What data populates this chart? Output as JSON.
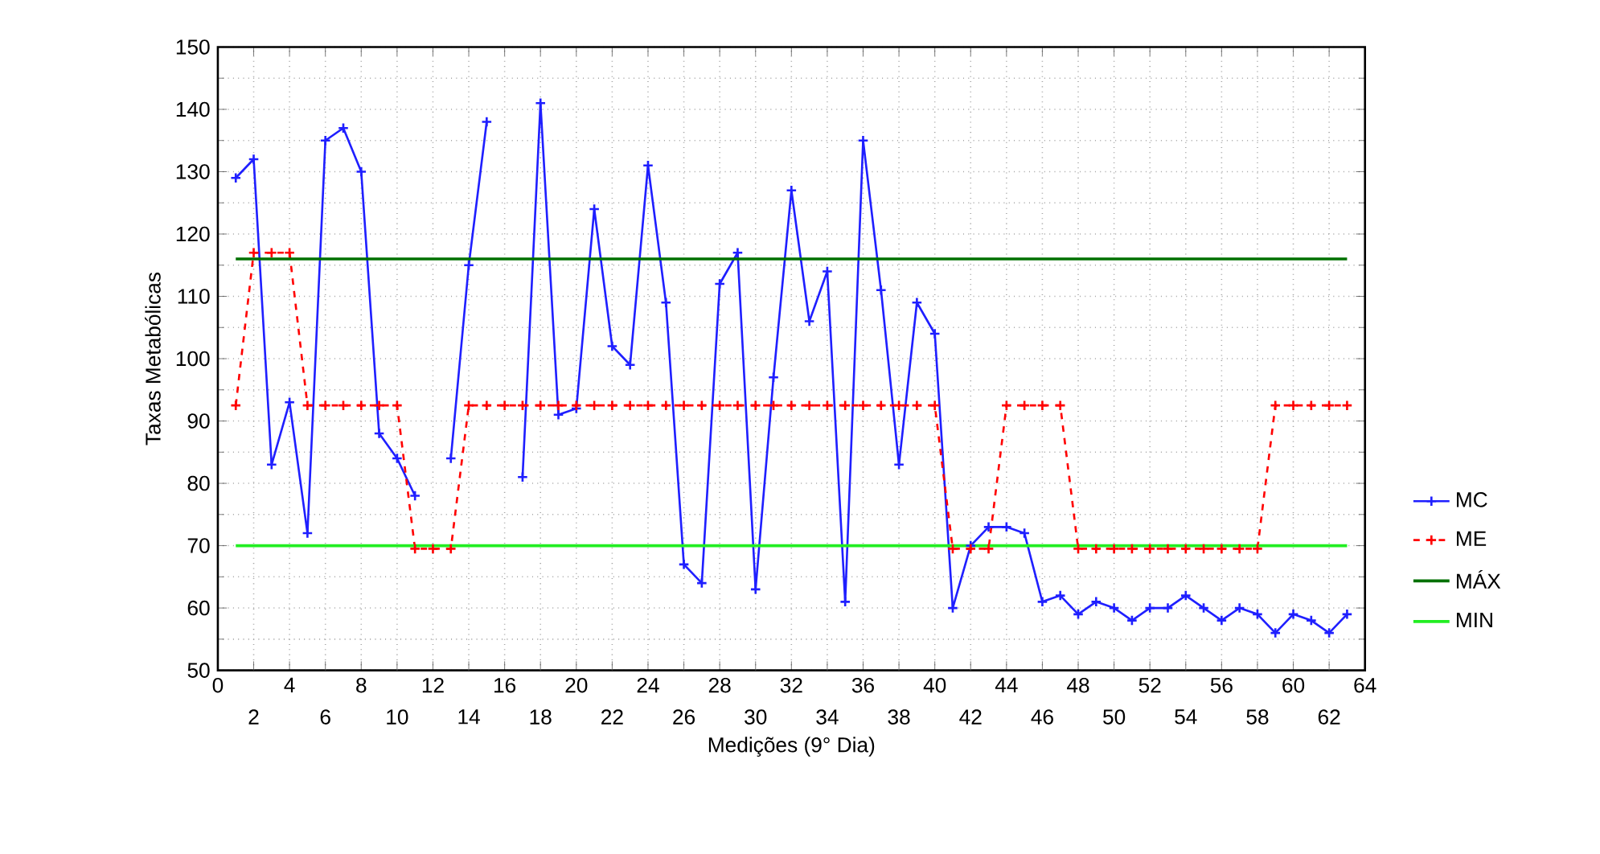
{
  "chart_data": {
    "type": "line",
    "xlabel": "Medições (9° Dia)",
    "ylabel": "Taxas Metabólicas",
    "x": [
      1,
      2,
      3,
      4,
      5,
      6,
      7,
      8,
      9,
      10,
      11,
      12,
      13,
      14,
      15,
      16,
      17,
      18,
      19,
      20,
      21,
      22,
      23,
      24,
      25,
      26,
      27,
      28,
      29,
      30,
      31,
      32,
      33,
      34,
      35,
      36,
      37,
      38,
      39,
      40,
      41,
      42,
      43,
      44,
      45,
      46,
      47,
      48,
      49,
      50,
      51,
      52,
      53,
      54,
      55,
      56,
      57,
      58,
      59,
      60,
      61,
      62,
      63
    ],
    "series": [
      {
        "name": "MC",
        "color": "#1f1fff",
        "marker": "cross",
        "line_style": "solid",
        "values": [
          129,
          132,
          83,
          93,
          72,
          135,
          137,
          130,
          88,
          84,
          78,
          null,
          84,
          115,
          138,
          null,
          81,
          141,
          91,
          92,
          124,
          102,
          99,
          131,
          109,
          67,
          64,
          112,
          117,
          63,
          97,
          127,
          106,
          114,
          61,
          135,
          111,
          83,
          109,
          104,
          60,
          70,
          73,
          73,
          72,
          61,
          62,
          59,
          61,
          60,
          58,
          60,
          60,
          62,
          60,
          58,
          60,
          59,
          56,
          59,
          58,
          56,
          59
        ]
      },
      {
        "name": "ME",
        "color": "#ff0000",
        "marker": "cross",
        "line_style": "dashed",
        "values": [
          92.5,
          117,
          117,
          117,
          92.5,
          92.5,
          92.5,
          92.5,
          92.5,
          92.5,
          69.5,
          69.5,
          69.5,
          92.5,
          92.5,
          92.5,
          92.5,
          92.5,
          92.5,
          92.5,
          92.5,
          92.5,
          92.5,
          92.5,
          92.5,
          92.5,
          92.5,
          92.5,
          92.5,
          92.5,
          92.5,
          92.5,
          92.5,
          92.5,
          92.5,
          92.5,
          92.5,
          92.5,
          92.5,
          92.5,
          69.5,
          69.5,
          69.5,
          92.5,
          92.5,
          92.5,
          92.5,
          69.5,
          69.5,
          69.5,
          69.5,
          69.5,
          69.5,
          69.5,
          69.5,
          69.5,
          69.5,
          69.5,
          92.5,
          92.5,
          92.5,
          92.5,
          92.5
        ]
      },
      {
        "name": "MÁX",
        "color": "#007000",
        "marker": "none",
        "line_style": "solid",
        "values": [
          116,
          116,
          116,
          116,
          116,
          116,
          116,
          116,
          116,
          116,
          116,
          116,
          116,
          116,
          116,
          116,
          116,
          116,
          116,
          116,
          116,
          116,
          116,
          116,
          116,
          116,
          116,
          116,
          116,
          116,
          116,
          116,
          116,
          116,
          116,
          116,
          116,
          116,
          116,
          116,
          116,
          116,
          116,
          116,
          116,
          116,
          116,
          116,
          116,
          116,
          116,
          116,
          116,
          116,
          116,
          116,
          116,
          116,
          116,
          116,
          116,
          116,
          116
        ]
      },
      {
        "name": "MIN",
        "color": "#22ee22",
        "marker": "none",
        "line_style": "solid",
        "values": [
          70,
          70,
          70,
          70,
          70,
          70,
          70,
          70,
          70,
          70,
          70,
          70,
          70,
          70,
          70,
          70,
          70,
          70,
          70,
          70,
          70,
          70,
          70,
          70,
          70,
          70,
          70,
          70,
          70,
          70,
          70,
          70,
          70,
          70,
          70,
          70,
          70,
          70,
          70,
          70,
          70,
          70,
          70,
          70,
          70,
          70,
          70,
          70,
          70,
          70,
          70,
          70,
          70,
          70,
          70,
          70,
          70,
          70,
          70,
          70,
          70,
          70,
          70
        ]
      }
    ],
    "xlim": [
      0,
      64
    ],
    "xticks": [
      0,
      4,
      8,
      12,
      16,
      20,
      24,
      28,
      32,
      36,
      40,
      44,
      48,
      52,
      56,
      60,
      64
    ],
    "x2lim": [
      0,
      64
    ],
    "x2ticks": [
      2,
      6,
      10,
      14,
      18,
      22,
      26,
      30,
      34,
      38,
      42,
      46,
      50,
      54,
      58,
      62
    ],
    "ylim": [
      50,
      150
    ],
    "yticks": [
      50,
      60,
      70,
      80,
      90,
      100,
      110,
      120,
      130,
      140,
      150
    ],
    "grid": true,
    "legend": "right"
  }
}
